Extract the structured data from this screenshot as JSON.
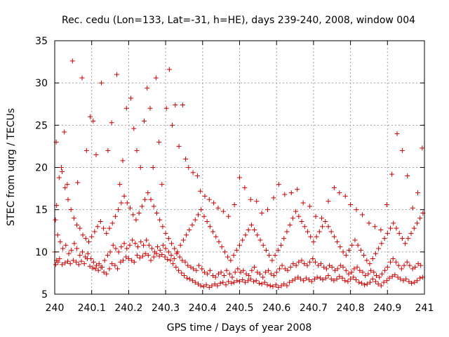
{
  "chart_data": {
    "type": "scatter",
    "title": "Rec. cedu (Lon=133, Lat=-31, h=HE), days 239-240, 2008, window 004",
    "xlabel": "GPS time / Days of year 2008",
    "ylabel": "STEC from uqrg / TECUs",
    "xlim": [
      240,
      241
    ],
    "ylim": [
      5,
      35
    ],
    "xticks": [
      "240",
      "240.1",
      "240.2",
      "240.3",
      "240.4",
      "240.5",
      "240.6",
      "240.7",
      "240.8",
      "240.9",
      "241"
    ],
    "yticks": [
      "5",
      "10",
      "15",
      "20",
      "25",
      "30",
      "35"
    ],
    "grid": true,
    "marker": "+",
    "color": "#cc0000",
    "series": [
      {
        "x": [
          240.0,
          240.003,
          240.005,
          240.009,
          240.013,
          240.02,
          240.028,
          240.035,
          240.042,
          240.05,
          240.058,
          240.065,
          240.072,
          240.08,
          240.088,
          240.095,
          240.103,
          240.11,
          240.118,
          240.125,
          240.133,
          240.14,
          240.148,
          240.155,
          240.163,
          240.17,
          240.178,
          240.185,
          240.193,
          240.2,
          240.208,
          240.215,
          240.223,
          240.23,
          240.238,
          240.245,
          240.253,
          240.26,
          240.268,
          240.275,
          240.283,
          240.29,
          240.298,
          240.305,
          240.313,
          240.32,
          240.328,
          240.335,
          240.343,
          240.35,
          240.358,
          240.365,
          240.373,
          240.38,
          240.388,
          240.395,
          240.403,
          240.41,
          240.418,
          240.425,
          240.433,
          240.44,
          240.448,
          240.455,
          240.463,
          240.47,
          240.478,
          240.485,
          240.493,
          240.5,
          240.508,
          240.515,
          240.523,
          240.53,
          240.538,
          240.545,
          240.553,
          240.56,
          240.568,
          240.575,
          240.583,
          240.59,
          240.598,
          240.605,
          240.613,
          240.62,
          240.628,
          240.635,
          240.643,
          240.65,
          240.658,
          240.665,
          240.673,
          240.68,
          240.688,
          240.695,
          240.703,
          240.71,
          240.718,
          240.725,
          240.733,
          240.74,
          240.748,
          240.755,
          240.763,
          240.77,
          240.778,
          240.785,
          240.793,
          240.8,
          240.808,
          240.815,
          240.823,
          240.83,
          240.838,
          240.845,
          240.853,
          240.86,
          240.868,
          240.875,
          240.883,
          240.89,
          240.898,
          240.905,
          240.913,
          240.92,
          240.928,
          240.935,
          240.943,
          240.95,
          240.958,
          240.965,
          240.973,
          240.98,
          240.988,
          240.995
        ],
        "y": [
          10.0,
          8.5,
          9.0,
          8.8,
          9.2,
          8.5,
          8.7,
          8.9,
          8.6,
          9.0,
          8.8,
          8.5,
          8.9,
          8.6,
          9.2,
          8.3,
          8.1,
          8.0,
          7.8,
          8.2,
          7.6,
          7.4,
          8.0,
          8.6,
          8.4,
          8.0,
          8.8,
          9.0,
          9.4,
          9.2,
          9.0,
          8.8,
          9.6,
          9.3,
          9.5,
          9.8,
          9.6,
          9.0,
          9.4,
          9.8,
          9.5,
          9.7,
          9.4,
          9.1,
          9.0,
          8.6,
          8.2,
          7.8,
          7.5,
          7.2,
          6.9,
          6.8,
          6.6,
          6.4,
          6.2,
          6.0,
          5.9,
          6.1,
          5.8,
          6.0,
          6.2,
          6.0,
          6.3,
          6.4,
          6.1,
          6.5,
          6.3,
          6.4,
          6.6,
          6.5,
          6.7,
          6.4,
          6.6,
          6.8,
          6.5,
          6.6,
          6.3,
          6.2,
          6.4,
          6.1,
          6.0,
          5.9,
          6.1,
          5.8,
          6.0,
          6.2,
          6.0,
          6.4,
          6.6,
          6.8,
          7.0,
          6.8,
          6.6,
          6.9,
          6.7,
          6.5,
          6.8,
          7.0,
          6.9,
          6.7,
          6.9,
          7.2,
          6.8,
          6.6,
          6.8,
          7.1,
          6.9,
          6.6,
          6.5,
          6.8,
          7.0,
          6.7,
          6.4,
          6.3,
          6.1,
          6.2,
          6.4,
          6.8,
          6.5,
          6.2,
          6.0,
          6.4,
          6.6,
          6.9,
          7.1,
          7.3,
          7.0,
          6.8,
          6.6,
          6.8,
          6.5,
          6.3,
          6.4,
          6.6,
          6.9,
          7.0
        ]
      },
      {
        "x": [
          240.002,
          240.008,
          240.015,
          240.022,
          240.03,
          240.038,
          240.045,
          240.053,
          240.06,
          240.068,
          240.075,
          240.083,
          240.09,
          240.098,
          240.105,
          240.113,
          240.12,
          240.128,
          240.135,
          240.143,
          240.15,
          240.158,
          240.165,
          240.173,
          240.18,
          240.188,
          240.195,
          240.203,
          240.21,
          240.218,
          240.225,
          240.233,
          240.24,
          240.248,
          240.255,
          240.263,
          240.27,
          240.278,
          240.285,
          240.293,
          240.3,
          240.308,
          240.315,
          240.323,
          240.33,
          240.338,
          240.345,
          240.353,
          240.36,
          240.368,
          240.375,
          240.383,
          240.39,
          240.398,
          240.405,
          240.413,
          240.42,
          240.428,
          240.435,
          240.443,
          240.45,
          240.458,
          240.465,
          240.473,
          240.48,
          240.488,
          240.495,
          240.503,
          240.51,
          240.518,
          240.525,
          240.533,
          240.54,
          240.548,
          240.555,
          240.563,
          240.57,
          240.578,
          240.585,
          240.593,
          240.6,
          240.608,
          240.615,
          240.623,
          240.63,
          240.638,
          240.645,
          240.653,
          240.66,
          240.668,
          240.675,
          240.683,
          240.69,
          240.698,
          240.705,
          240.713,
          240.72,
          240.728,
          240.735,
          240.743,
          240.75,
          240.758,
          240.765,
          240.773,
          240.78,
          240.788,
          240.795,
          240.803,
          240.81,
          240.818,
          240.825,
          240.833,
          240.84,
          240.848,
          240.855,
          240.863,
          240.87,
          240.878,
          240.885,
          240.893,
          240.9,
          240.908,
          240.915,
          240.923,
          240.93,
          240.938,
          240.945,
          240.953,
          240.96,
          240.968,
          240.975,
          240.983,
          240.99
        ],
        "y": [
          13.8,
          12.0,
          11.2,
          10.4,
          10.8,
          9.8,
          10.2,
          11.0,
          10.4,
          9.6,
          10.0,
          9.4,
          9.8,
          9.2,
          8.8,
          8.4,
          8.6,
          8.2,
          9.0,
          9.6,
          10.0,
          10.8,
          10.4,
          10.0,
          10.6,
          11.0,
          10.4,
          10.8,
          11.4,
          11.0,
          10.6,
          11.2,
          10.8,
          11.4,
          10.8,
          10.4,
          10.0,
          10.6,
          10.2,
          10.8,
          10.4,
          10.0,
          9.6,
          9.2,
          9.8,
          9.4,
          9.0,
          8.8,
          8.4,
          8.2,
          8.0,
          7.8,
          8.4,
          8.0,
          7.6,
          7.4,
          7.8,
          7.2,
          7.0,
          7.4,
          7.6,
          7.2,
          7.8,
          7.4,
          7.0,
          7.6,
          8.0,
          7.6,
          7.8,
          7.4,
          7.2,
          7.8,
          8.2,
          7.6,
          7.4,
          7.0,
          7.6,
          7.8,
          7.4,
          7.2,
          7.6,
          8.0,
          8.4,
          8.0,
          7.8,
          8.2,
          8.6,
          8.4,
          8.8,
          9.0,
          8.6,
          8.4,
          8.8,
          9.2,
          8.8,
          8.4,
          8.6,
          8.2,
          8.0,
          8.4,
          8.2,
          7.8,
          8.0,
          8.4,
          8.2,
          7.8,
          7.4,
          7.6,
          8.0,
          8.2,
          7.8,
          7.6,
          7.2,
          7.4,
          7.8,
          7.6,
          7.2,
          7.0,
          7.4,
          7.8,
          8.2,
          8.8,
          9.2,
          8.8,
          8.4,
          8.0,
          8.4,
          8.8,
          8.4,
          8.0,
          8.2,
          8.6,
          8.4
        ]
      },
      {
        "x": [
          240.005,
          240.012,
          240.02,
          240.028,
          240.036,
          240.044,
          240.052,
          240.06,
          240.068,
          240.076,
          240.084,
          240.092,
          240.1,
          240.108,
          240.116,
          240.124,
          240.132,
          240.14,
          240.148,
          240.156,
          240.164,
          240.172,
          240.18,
          240.188,
          240.196,
          240.204,
          240.212,
          240.22,
          240.228,
          240.236,
          240.244,
          240.252,
          240.26,
          240.268,
          240.276,
          240.284,
          240.292,
          240.3,
          240.308,
          240.316,
          240.324,
          240.332,
          240.34,
          240.348,
          240.356,
          240.364,
          240.372,
          240.38,
          240.388,
          240.396,
          240.404,
          240.412,
          240.42,
          240.428,
          240.436,
          240.444,
          240.452,
          240.46,
          240.468,
          240.476,
          240.484,
          240.492,
          240.5,
          240.508,
          240.516,
          240.524,
          240.532,
          240.54,
          240.548,
          240.556,
          240.564,
          240.572,
          240.58,
          240.588,
          240.596,
          240.604,
          240.612,
          240.62,
          240.628,
          240.636,
          240.644,
          240.652,
          240.66,
          240.668,
          240.676,
          240.684,
          240.692,
          240.7,
          240.708,
          240.716,
          240.724,
          240.732,
          240.74,
          240.748,
          240.756,
          240.764,
          240.772,
          240.78,
          240.788,
          240.796,
          240.804,
          240.812,
          240.82,
          240.828,
          240.836,
          240.844,
          240.852,
          240.86,
          240.868,
          240.876,
          240.884,
          240.892,
          240.9,
          240.908,
          240.916,
          240.924,
          240.932,
          240.94,
          240.948,
          240.956,
          240.964,
          240.972,
          240.98,
          240.988,
          240.996
        ],
        "y": [
          15.5,
          18.8,
          19.5,
          17.6,
          16.2,
          15.0,
          14.0,
          13.2,
          12.8,
          12.0,
          11.6,
          11.2,
          11.8,
          12.4,
          13.0,
          13.6,
          12.8,
          12.2,
          12.8,
          13.4,
          14.2,
          15.0,
          15.8,
          16.6,
          15.8,
          15.2,
          14.4,
          13.8,
          14.6,
          15.4,
          16.2,
          17.0,
          16.2,
          15.4,
          14.6,
          13.8,
          13.0,
          12.2,
          11.6,
          11.0,
          10.4,
          10.0,
          10.8,
          11.4,
          12.0,
          12.6,
          13.2,
          13.8,
          14.4,
          15.0,
          14.2,
          13.6,
          13.0,
          12.4,
          11.8,
          11.2,
          10.6,
          10.0,
          9.4,
          9.0,
          9.6,
          10.2,
          10.8,
          11.4,
          12.0,
          12.6,
          13.2,
          12.6,
          12.0,
          11.4,
          10.8,
          10.2,
          9.6,
          9.0,
          9.6,
          10.2,
          10.8,
          11.6,
          12.4,
          13.2,
          14.0,
          14.8,
          14.2,
          13.6,
          13.0,
          12.4,
          11.8,
          11.2,
          11.8,
          12.4,
          13.0,
          13.6,
          13.0,
          12.4,
          11.8,
          11.2,
          10.6,
          10.0,
          9.6,
          10.2,
          10.8,
          11.4,
          10.8,
          10.2,
          9.6,
          9.0,
          8.6,
          9.2,
          9.8,
          10.4,
          11.0,
          11.6,
          12.2,
          12.8,
          13.4,
          12.8,
          12.2,
          11.6,
          11.0,
          11.6,
          12.2,
          12.8,
          13.4,
          14.0,
          14.6
        ]
      },
      {
        "x": [
          240.004,
          240.018,
          240.026,
          240.034,
          240.048,
          240.062,
          240.074,
          240.086,
          240.096,
          240.104,
          240.112,
          240.126,
          240.144,
          240.154,
          240.168,
          240.176,
          240.184,
          240.194,
          240.206,
          240.214,
          240.222,
          240.232,
          240.242,
          240.25,
          240.258,
          240.266,
          240.274,
          240.282,
          240.29,
          240.302,
          240.31,
          240.318,
          240.326,
          240.336,
          240.346,
          240.354,
          240.362,
          240.374,
          240.386,
          240.394,
          240.406,
          240.418,
          240.43,
          240.442,
          240.456,
          240.47,
          240.486,
          240.5,
          240.514,
          240.53,
          240.546,
          240.56,
          240.576,
          240.592,
          240.606,
          240.622,
          240.64,
          240.656,
          240.672,
          240.69,
          240.706,
          240.722,
          240.74,
          240.756,
          240.77,
          240.786,
          240.8,
          240.816,
          240.832,
          240.85,
          240.866,
          240.882,
          240.898,
          240.912,
          240.926,
          240.94,
          240.954,
          240.968,
          240.982,
          240.994
        ],
        "y": [
          23.0,
          20.0,
          24.2,
          18.0,
          32.6,
          18.2,
          30.6,
          22.0,
          26.0,
          25.5,
          21.5,
          30.0,
          22.0,
          25.3,
          31.0,
          18.0,
          20.8,
          27.0,
          28.2,
          24.6,
          22.0,
          20.0,
          25.5,
          29.4,
          27.0,
          20.0,
          30.6,
          23.0,
          18.0,
          27.0,
          31.6,
          25.0,
          27.4,
          22.5,
          27.4,
          21.0,
          20.0,
          19.4,
          19.0,
          17.2,
          16.6,
          16.2,
          15.8,
          15.2,
          14.8,
          14.2,
          15.6,
          18.8,
          17.6,
          16.2,
          16.0,
          14.6,
          15.0,
          16.4,
          18.0,
          16.8,
          17.0,
          17.4,
          15.8,
          15.4,
          14.2,
          14.0,
          16.0,
          17.6,
          17.0,
          16.6,
          15.6,
          15.0,
          14.4,
          13.4,
          13.0,
          12.6,
          15.6,
          19.2,
          24.0,
          22.0,
          19.0,
          15.2,
          17.0,
          22.3
        ]
      }
    ]
  }
}
